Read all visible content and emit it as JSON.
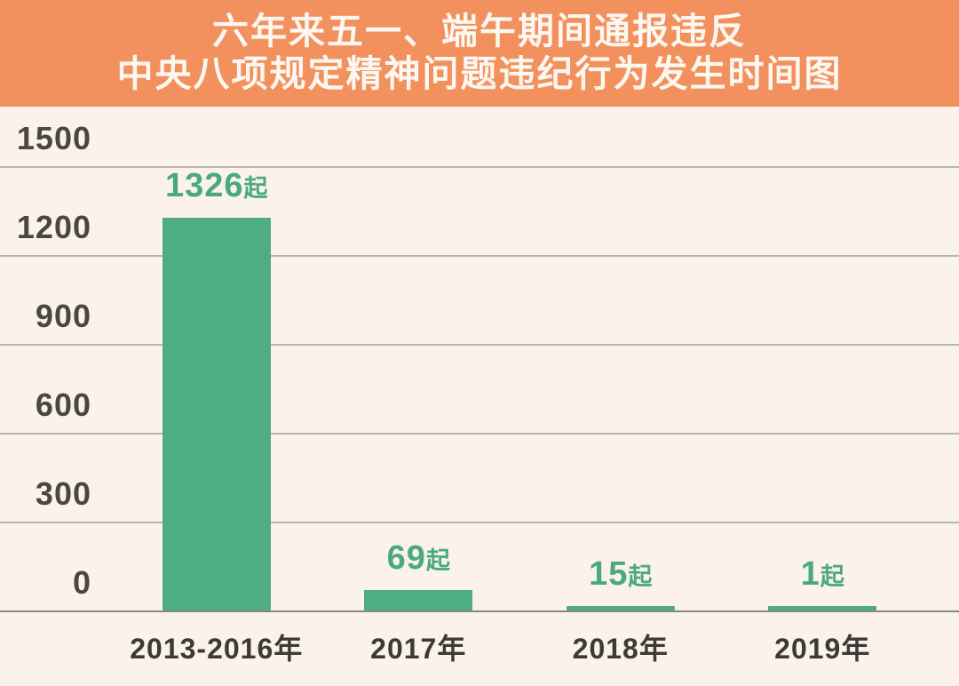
{
  "header": {
    "title_line1": "六年来五一、端午期间通报违反",
    "title_line2": "中央八项规定精神问题违纪行为发生时间图"
  },
  "chart_data": {
    "type": "bar",
    "title": "六年来五一、端午期间通报违反中央八项规定精神问题违纪行为发生时间图",
    "categories": [
      "2013-2016年",
      "2017年",
      "2018年",
      "2019年"
    ],
    "values": [
      1326,
      69,
      15,
      1
    ],
    "value_labels": [
      "1326起",
      "69起",
      "15起",
      "1起"
    ],
    "value_suffix": "起",
    "y_ticks": [
      1500,
      1200,
      900,
      600,
      300,
      0
    ],
    "ylim": [
      0,
      1500
    ],
    "xlabel": "",
    "ylabel": "",
    "grid": "horizontal",
    "legend": "none",
    "colors": {
      "banner": "#F2915E",
      "background": "#FBF3EB",
      "bar": "#4FAE81",
      "value_label": "#4BAA7D",
      "gridline": "#b9b5ac",
      "baseline": "#8a867e",
      "y_tick_text": "#4a4641",
      "x_tick_text": "#3d3a35",
      "title_text": "#FDF7F1"
    }
  }
}
